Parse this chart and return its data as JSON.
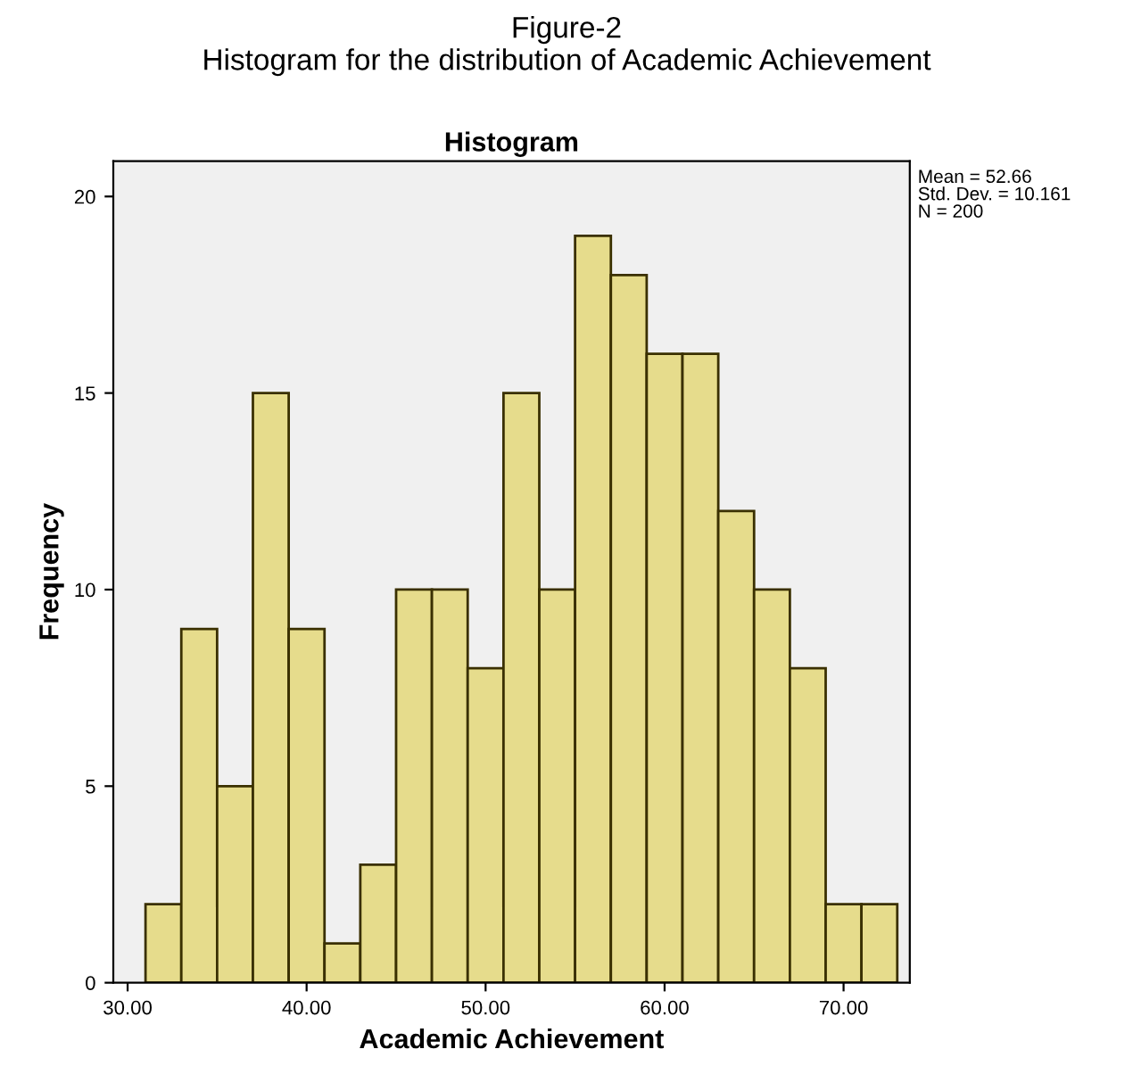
{
  "chart_data": {
    "type": "histogram",
    "title": "Figure-2",
    "subtitle": "Histogram for the distribution of Academic Achievement",
    "xlabel": "Academic Achievement",
    "ylabel": "Frequency",
    "bins": [
      31,
      33,
      35,
      37,
      39,
      41,
      43,
      45,
      47,
      49,
      51,
      53,
      55,
      57,
      59,
      61,
      63,
      65,
      67,
      69,
      71,
      73
    ],
    "values": [
      2,
      9,
      5,
      15,
      9,
      1,
      3,
      10,
      10,
      8,
      15,
      10,
      19,
      18,
      16,
      16,
      12,
      10,
      8,
      2,
      2
    ],
    "color": "#e6dc8c",
    "xlim": [
      29.2,
      73.7
    ],
    "xticks": [
      {
        "value": 30,
        "label": "30.00"
      },
      {
        "value": 40,
        "label": "40.00"
      },
      {
        "value": 50,
        "label": "50.00"
      },
      {
        "value": 60,
        "label": "60.00"
      },
      {
        "value": 70,
        "label": "70.00"
      }
    ],
    "ylim": [
      0,
      20.9
    ],
    "yticks": [
      0,
      5,
      10,
      15,
      20
    ],
    "annotations": [
      "Histogram",
      "Mean = 52.66\nStd. Dev. = 10.161\nN = 200"
    ]
  }
}
